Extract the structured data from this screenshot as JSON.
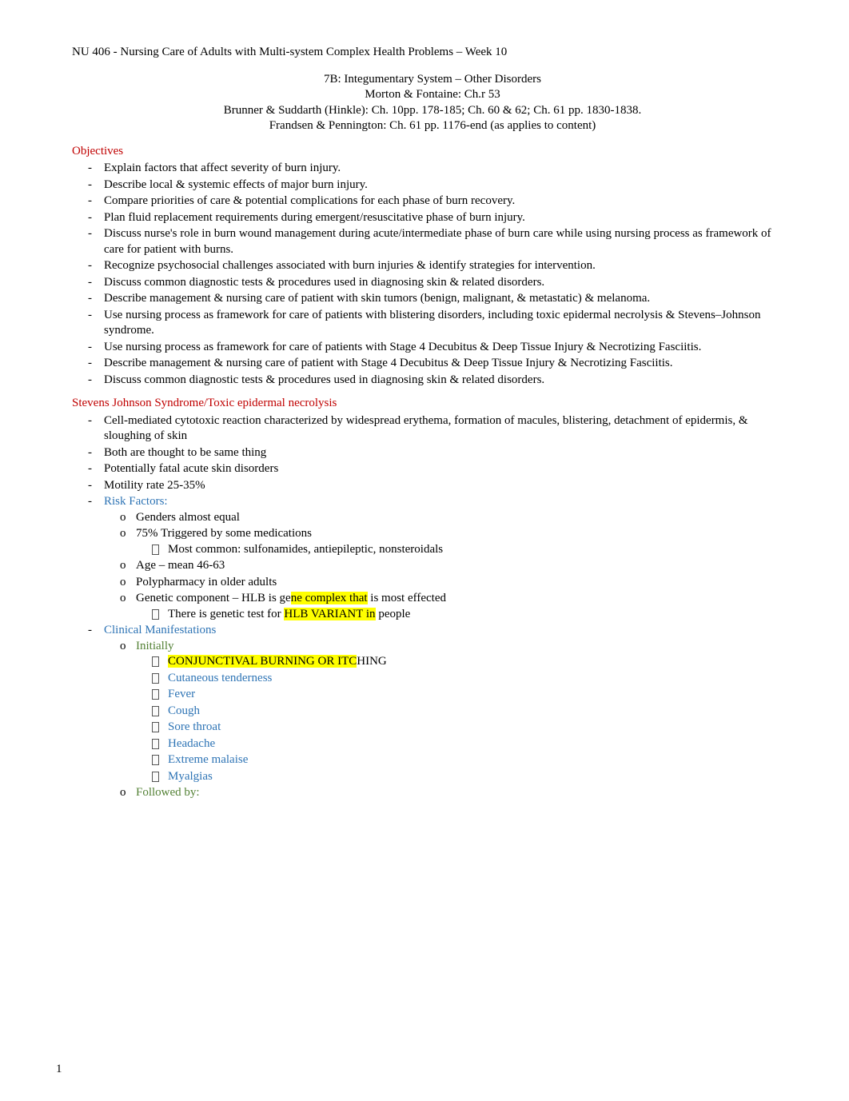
{
  "colors": {
    "heading_red": "#c00000",
    "blue": "#2e74b5",
    "green": "#538135",
    "highlight_bg": "#ffff00",
    "text": "#000000",
    "background": "#ffffff"
  },
  "typography": {
    "font_family": "Times New Roman",
    "base_fontsize_pt": 11,
    "line_height": 1.3
  },
  "header": {
    "course_line": "NU 406 - Nursing Care of Adults with Multi-system Complex Health Problems – Week 10",
    "title": "7B: Integumentary System – Other Disorders",
    "refs": [
      "Morton & Fontaine: Ch.r 53",
      "Brunner & Suddarth (Hinkle): Ch. 10pp. 178-185; Ch. 60 & 62; Ch. 61 pp. 1830-1838.",
      "Frandsen & Pennington: Ch. 61 pp. 1176-end (as applies to content)"
    ]
  },
  "objectives": {
    "heading": "Objectives",
    "items": [
      "Explain factors that affect severity of burn injury.",
      "Describe local & systemic effects of major burn injury.",
      "Compare priorities of care & potential complications for each phase of burn recovery.",
      "Plan fluid replacement requirements during emergent/resuscitative phase of burn injury.",
      "Discuss nurse's role in burn wound management during acute/intermediate phase of burn care while using nursing process as framework of care for patient with burns.",
      "Recognize psychosocial challenges associated with burn injuries & identify strategies for intervention.",
      "Discuss common diagnostic tests & procedures used in diagnosing skin & related disorders.",
      "Describe management & nursing care of patient with skin tumors (benign, malignant, & metastatic) & melanoma.",
      "Use nursing process as framework for care of patients with blistering disorders, including toxic epidermal necrolysis & Stevens–Johnson syndrome.",
      "Use nursing process as framework for care of patients with Stage 4 Decubitus & Deep Tissue Injury & Necrotizing Fasciitis.",
      "Describe management & nursing care of patient with Stage 4 Decubitus & Deep Tissue Injury & Necrotizing Fasciitis.",
      "Discuss common diagnostic tests & procedures used in diagnosing skin & related disorders."
    ]
  },
  "sjs": {
    "heading": "Stevens Johnson Syndrome/Toxic epidermal necrolysis",
    "top_items": [
      "Cell-mediated cytotoxic reaction characterized by widespread erythema, formation of macules, blistering, detachment of epidermis, & sloughing of skin",
      "Both are thought to be same thing",
      "Potentially fatal acute skin disorders",
      "Motility rate 25-35%"
    ],
    "risk_factors": {
      "label": "Risk Factors:",
      "items": {
        "genders": "Genders almost equal",
        "triggered": "75% Triggered by some medications",
        "triggered_sub": "Most common: sulfonamides, antiepileptic, nonsteroidals",
        "age": "Age – mean 46-63",
        "polypharmacy": "Polypharmacy in older adults",
        "genetic_prefix": "Genetic component – HLB is ge",
        "genetic_mid_hl": "ne complex that",
        "genetic_suffix": " is most effected",
        "genetic_sub_prefix": "There is genetic test for ",
        "genetic_sub_hl": "HLB VARIANT",
        "genetic_sub_mid": " in",
        "genetic_sub_suffix": " people"
      }
    },
    "clinical": {
      "label": "Clinical Manifestations",
      "initially_label": "Initially",
      "initially_items": {
        "i0_hl": "CONJUNCTIVAL BURNING OR ITC",
        "i0_suffix": "HING",
        "i1": "Cutaneous tenderness",
        "i2": "Fever",
        "i3": "Cough",
        "i4": "Sore throat",
        "i5": "Headache",
        "i6": "Extreme malaise",
        "i7": "Myalgias"
      },
      "followed_label": "Followed by:"
    }
  },
  "page_number": "1"
}
